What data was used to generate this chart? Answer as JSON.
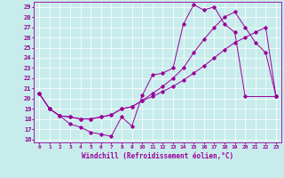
{
  "xlabel": "Windchill (Refroidissement éolien,°C)",
  "bg_color": "#c8ecec",
  "line_color": "#990099",
  "xlim": [
    -0.5,
    23.5
  ],
  "ylim": [
    15.7,
    29.5
  ],
  "xticks": [
    0,
    1,
    2,
    3,
    4,
    5,
    6,
    7,
    8,
    9,
    10,
    11,
    12,
    13,
    14,
    15,
    16,
    17,
    18,
    19,
    20,
    21,
    22,
    23
  ],
  "yticks": [
    16,
    17,
    18,
    19,
    20,
    21,
    22,
    23,
    24,
    25,
    26,
    27,
    28,
    29
  ],
  "line1_x": [
    0,
    1,
    2,
    3,
    4,
    5,
    6,
    7,
    8,
    9,
    10,
    11,
    12,
    13,
    14,
    15,
    16,
    17,
    18,
    19,
    20,
    23
  ],
  "line1_y": [
    20.5,
    19.0,
    18.3,
    17.5,
    17.2,
    16.7,
    16.5,
    16.3,
    18.2,
    17.3,
    20.3,
    22.3,
    22.5,
    23.0,
    27.3,
    29.2,
    28.7,
    29.0,
    27.3,
    26.5,
    20.2,
    20.2
  ],
  "line2_x": [
    0,
    1,
    2,
    3,
    4,
    5,
    6,
    7,
    8,
    9,
    10,
    11,
    12,
    13,
    14,
    15,
    16,
    17,
    18,
    19,
    20,
    21,
    22,
    23
  ],
  "line2_y": [
    20.5,
    19.0,
    18.3,
    18.2,
    18.0,
    18.0,
    18.2,
    18.4,
    19.0,
    19.2,
    19.8,
    20.2,
    20.7,
    21.2,
    21.8,
    22.5,
    23.2,
    24.0,
    24.8,
    25.5,
    26.0,
    26.5,
    27.0,
    20.2
  ],
  "line3_x": [
    0,
    1,
    2,
    3,
    4,
    5,
    6,
    7,
    8,
    9,
    10,
    11,
    12,
    13,
    14,
    15,
    16,
    17,
    18,
    19,
    20,
    21,
    22,
    23
  ],
  "line3_y": [
    20.5,
    19.0,
    18.3,
    18.2,
    18.0,
    18.0,
    18.2,
    18.4,
    19.0,
    19.2,
    19.8,
    20.5,
    21.2,
    22.0,
    23.0,
    24.5,
    25.8,
    27.0,
    28.0,
    28.5,
    27.0,
    25.5,
    24.5,
    20.2
  ]
}
